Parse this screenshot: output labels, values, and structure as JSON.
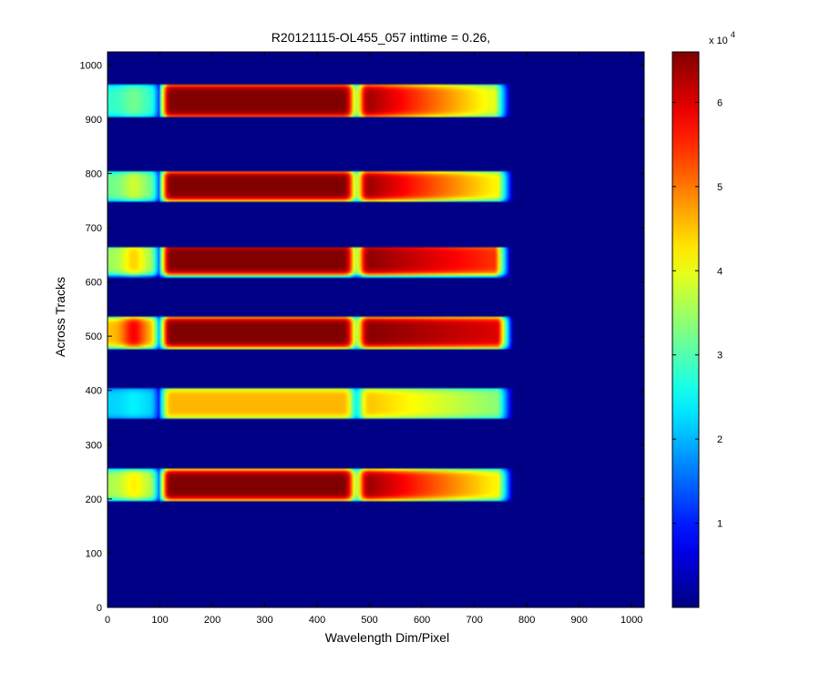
{
  "chart_data": {
    "type": "heatmap",
    "title": "R20121115-OL455_057 inttime = 0.26,",
    "xlabel": "Wavelength Dim/Pixel",
    "ylabel": "Across Tracks",
    "xlim": [
      0,
      1024
    ],
    "ylim": [
      0,
      1024
    ],
    "x_ticks": [
      0,
      100,
      200,
      300,
      400,
      500,
      600,
      700,
      800,
      900,
      1000
    ],
    "y_ticks": [
      0,
      100,
      200,
      300,
      400,
      500,
      600,
      700,
      800,
      900,
      1000
    ],
    "colorbar": {
      "colormap": "jet",
      "min": 0,
      "max": 6.6,
      "ticks": [
        1,
        2,
        3,
        4,
        5,
        6
      ],
      "exponent_label": "x 10",
      "exponent": "4"
    },
    "background_value": 0.05,
    "tracks": [
      {
        "y_range": [
          903,
          965
        ],
        "x_extent": [
          0,
          770
        ],
        "center": 934,
        "core": 6.6,
        "right": 4.0,
        "left_fill": 2.8,
        "left_peak": 3.2
      },
      {
        "y_range": [
          750,
          805
        ],
        "x_extent": [
          0,
          775
        ],
        "center": 777,
        "core": 6.6,
        "right": 4.2,
        "left_fill": 3.2,
        "left_peak": 3.8
      },
      {
        "y_range": [
          608,
          665
        ],
        "x_extent": [
          0,
          770
        ],
        "center": 641,
        "core": 6.6,
        "right": 5.5,
        "left_fill": 3.5,
        "left_peak": 4.4
      },
      {
        "y_range": [
          478,
          535
        ],
        "x_extent": [
          0,
          775
        ],
        "center": 507,
        "core": 6.6,
        "right": 6.0,
        "left_fill": 4.5,
        "left_peak": 5.8
      },
      {
        "y_range": [
          347,
          405
        ],
        "x_extent": [
          0,
          775
        ],
        "center": 376,
        "core": 4.6,
        "right": 3.4,
        "left_fill": 2.2,
        "left_peak": 2.4
      },
      {
        "y_range": [
          198,
          255
        ],
        "x_extent": [
          0,
          775
        ],
        "center": 226,
        "core": 6.6,
        "right": 4.2,
        "left_fill": 3.6,
        "left_peak": 4.2
      }
    ]
  }
}
